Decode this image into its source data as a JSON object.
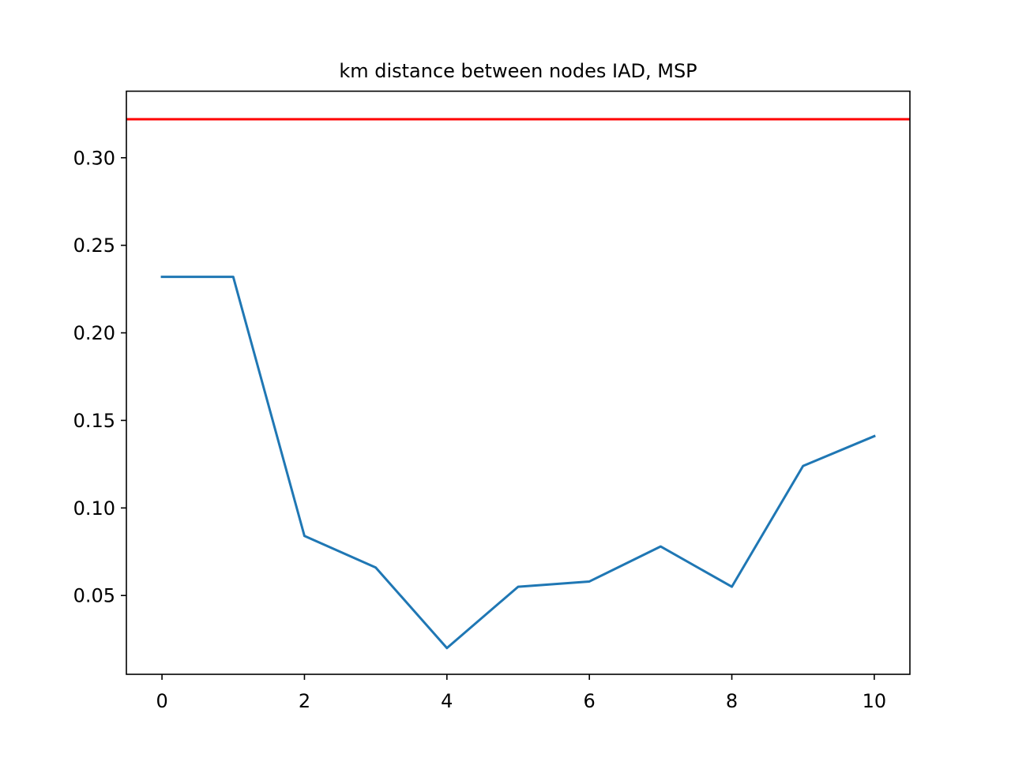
{
  "chart_data": {
    "type": "line",
    "title": "km distance between nodes IAD, MSP",
    "xlabel": "",
    "ylabel": "",
    "xlim": [
      -0.5,
      10.5
    ],
    "ylim": [
      0.005,
      0.338
    ],
    "x_ticks": [
      0,
      2,
      4,
      6,
      8,
      10
    ],
    "x_tick_labels": [
      "0",
      "2",
      "4",
      "6",
      "8",
      "10"
    ],
    "y_ticks": [
      0.05,
      0.1,
      0.15,
      0.2,
      0.25,
      0.3
    ],
    "y_tick_labels": [
      "0.05",
      "0.10",
      "0.15",
      "0.20",
      "0.25",
      "0.30"
    ],
    "grid": false,
    "legend": "none",
    "series": [
      {
        "color": "#1f77b4",
        "x": [
          0,
          1,
          2,
          3,
          4,
          5,
          6,
          7,
          8,
          9,
          10
        ],
        "values": [
          0.232,
          0.232,
          0.084,
          0.066,
          0.02,
          0.055,
          0.058,
          0.078,
          0.055,
          0.124,
          0.141
        ]
      }
    ],
    "hlines": [
      {
        "y": 0.322,
        "color": "#ff0000"
      }
    ]
  }
}
